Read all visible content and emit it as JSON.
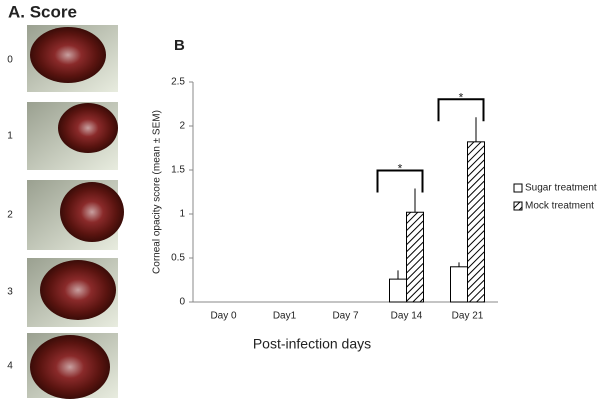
{
  "panel_a": {
    "title": "A. Score",
    "scores": [
      "0",
      "1",
      "2",
      "3",
      "4"
    ]
  },
  "chart_data": {
    "type": "bar",
    "panel_label": "B",
    "x_label": "Post-infection days",
    "y_label": "Corneal opacity score (mean ± SEM)",
    "categories": [
      "Day 0",
      "Day1",
      "Day 7",
      "Day 14",
      "Day 21"
    ],
    "series": [
      {
        "name": "Sugar treatment",
        "color": "#ffffff",
        "values": [
          null,
          null,
          null,
          0.26,
          0.4
        ],
        "errors": [
          null,
          null,
          null,
          0.1,
          0.05
        ]
      },
      {
        "name": "Mock treatment",
        "color": "hatch",
        "values": [
          null,
          null,
          null,
          1.02,
          1.82
        ],
        "errors": [
          null,
          null,
          null,
          0.27,
          0.28
        ]
      }
    ],
    "annotations": [
      "*",
      "*"
    ],
    "ylim": [
      0,
      2.5
    ],
    "yticks": [
      0,
      0.5,
      1,
      1.5,
      2,
      2.5
    ],
    "legend": "right"
  }
}
